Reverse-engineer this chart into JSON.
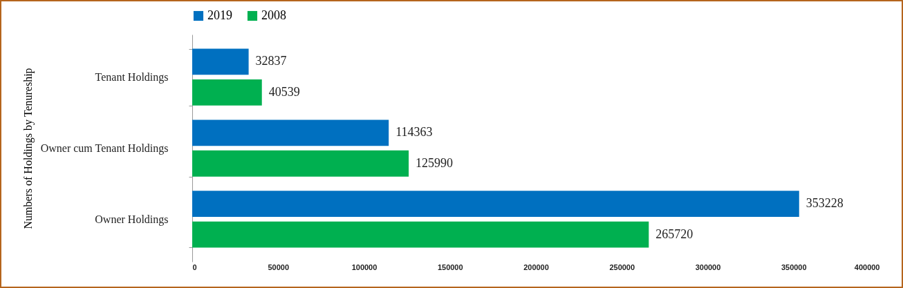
{
  "chart_data": {
    "type": "bar",
    "orientation": "horizontal",
    "ylabel": "Numbers of Holdings by Tenureship",
    "categories": [
      "Tenant Holdings",
      "Owner cum Tenant Holdings",
      "Owner Holdings"
    ],
    "series": [
      {
        "name": "2019",
        "color": "#0070c0",
        "values": [
          32837,
          114363,
          353228
        ]
      },
      {
        "name": "2008",
        "color": "#00b050",
        "values": [
          40539,
          125990,
          265720
        ]
      }
    ],
    "xlim": [
      0,
      400000
    ],
    "xticks": [
      0,
      50000,
      100000,
      150000,
      200000,
      250000,
      300000,
      350000,
      400000
    ],
    "data_labels": true,
    "legend": "top",
    "grid": false
  }
}
